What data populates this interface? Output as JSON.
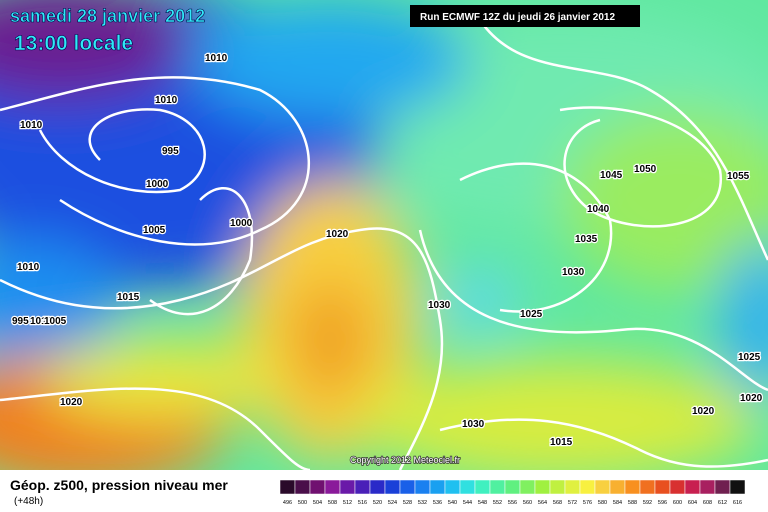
{
  "header": {
    "date": "samedi 28 janvier 2012",
    "time": "13:00 locale",
    "run": "Run ECMWF 12Z du jeudi 26 janvier 2012"
  },
  "map": {
    "isobar_labels": [
      "1010",
      "1010",
      "1010",
      "995",
      "1000",
      "1005",
      "1000",
      "1020",
      "1010",
      "1015",
      "995",
      "1010",
      "1005",
      "1020",
      "1030",
      "1025",
      "1030",
      "1035",
      "1040",
      "1045",
      "1050",
      "1055",
      "1030",
      "1015",
      "1020",
      "1025",
      "1020"
    ],
    "copyright": "Copyright 2012 Meteociel.fr"
  },
  "legend": {
    "title": "Géop. z500, pression niveau mer",
    "lead": "(+48h)",
    "scale": [
      "496",
      "500",
      "504",
      "508",
      "512",
      "516",
      "520",
      "524",
      "528",
      "532",
      "536",
      "540",
      "544",
      "548",
      "552",
      "556",
      "560",
      "564",
      "568",
      "572",
      "576",
      "580",
      "584",
      "588",
      "592",
      "596",
      "600",
      "604",
      "608",
      "612",
      "616"
    ],
    "colors": [
      "#2a0a2a",
      "#4a0f4a",
      "#701070",
      "#8a1a9a",
      "#6a1aa8",
      "#4a20b8",
      "#2a2ac8",
      "#1a40d8",
      "#1a60e8",
      "#1a80f0",
      "#1aa0f0",
      "#20c0f0",
      "#30e0e0",
      "#40f0c0",
      "#50f0a0",
      "#60f080",
      "#80f060",
      "#a0f040",
      "#c0f040",
      "#e0f040",
      "#f8f040",
      "#f8d040",
      "#f8b030",
      "#f89020",
      "#f07020",
      "#e85020",
      "#d83030",
      "#c82050",
      "#a82060",
      "#702050",
      "#101010"
    ]
  }
}
